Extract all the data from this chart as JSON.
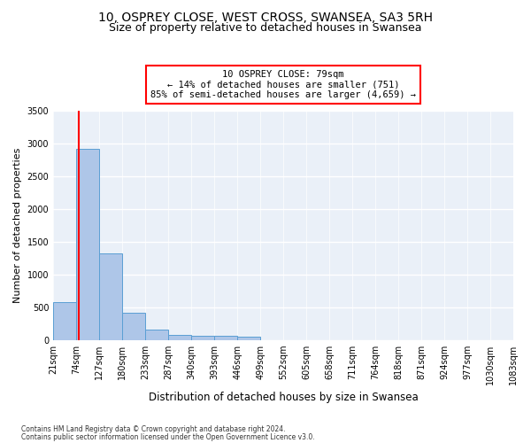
{
  "title1": "10, OSPREY CLOSE, WEST CROSS, SWANSEA, SA3 5RH",
  "title2": "Size of property relative to detached houses in Swansea",
  "xlabel": "Distribution of detached houses by size in Swansea",
  "ylabel": "Number of detached properties",
  "footer1": "Contains HM Land Registry data © Crown copyright and database right 2024.",
  "footer2": "Contains public sector information licensed under the Open Government Licence v3.0.",
  "bin_labels": [
    "21sqm",
    "74sqm",
    "127sqm",
    "180sqm",
    "233sqm",
    "287sqm",
    "340sqm",
    "393sqm",
    "446sqm",
    "499sqm",
    "552sqm",
    "605sqm",
    "658sqm",
    "711sqm",
    "764sqm",
    "818sqm",
    "871sqm",
    "924sqm",
    "977sqm",
    "1030sqm",
    "1083sqm"
  ],
  "bar_values": [
    575,
    2920,
    1320,
    410,
    155,
    80,
    60,
    55,
    45,
    0,
    0,
    0,
    0,
    0,
    0,
    0,
    0,
    0,
    0,
    0
  ],
  "bar_color": "#aec6e8",
  "bar_edge_color": "#5a9fd4",
  "annotation_line1": "10 OSPREY CLOSE: 79sqm",
  "annotation_line2": "← 14% of detached houses are smaller (751)",
  "annotation_line3": "85% of semi-detached houses are larger (4,659) →",
  "annotation_box_color": "white",
  "annotation_border_color": "red",
  "vline_color": "red",
  "ylim": [
    0,
    3500
  ],
  "yticks": [
    0,
    500,
    1000,
    1500,
    2000,
    2500,
    3000,
    3500
  ],
  "background_color": "#eaf0f8",
  "grid_color": "white",
  "title1_fontsize": 10,
  "title2_fontsize": 9,
  "xlabel_fontsize": 8.5,
  "ylabel_fontsize": 8,
  "tick_fontsize": 7,
  "annot_fontsize": 7.5
}
